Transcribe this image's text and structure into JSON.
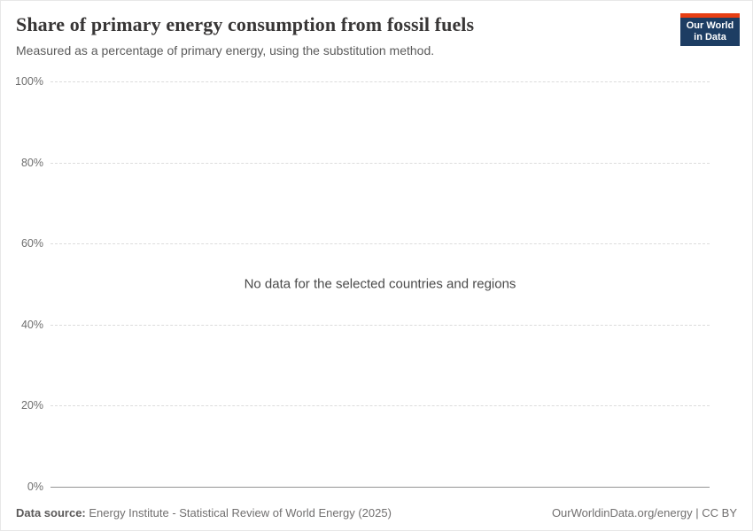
{
  "header": {
    "title": "Share of primary energy consumption from fossil fuels",
    "subtitle": "Measured as a percentage of primary energy, using the substitution method.",
    "logo": {
      "line1": "Our World",
      "line2": "in Data",
      "bg_color": "#1d3d63",
      "accent_color": "#e63e13"
    }
  },
  "chart_data": {
    "type": "line",
    "title": "Share of primary energy consumption from fossil fuels",
    "subtitle": "Measured as a percentage of primary energy, using the substitution method.",
    "xlabel": "",
    "ylabel": "",
    "ylim": [
      0,
      100
    ],
    "yticks": [
      "0%",
      "20%",
      "40%",
      "60%",
      "80%",
      "100%"
    ],
    "series": [],
    "no_data_message": "No data for the selected countries and regions",
    "grid": "horizontal-dashed",
    "legend_position": "none"
  },
  "footer": {
    "source_label": "Data source:",
    "source_text": "Energy Institute - Statistical Review of World Energy (2025)",
    "credit": "OurWorldinData.org/energy | CC BY"
  }
}
